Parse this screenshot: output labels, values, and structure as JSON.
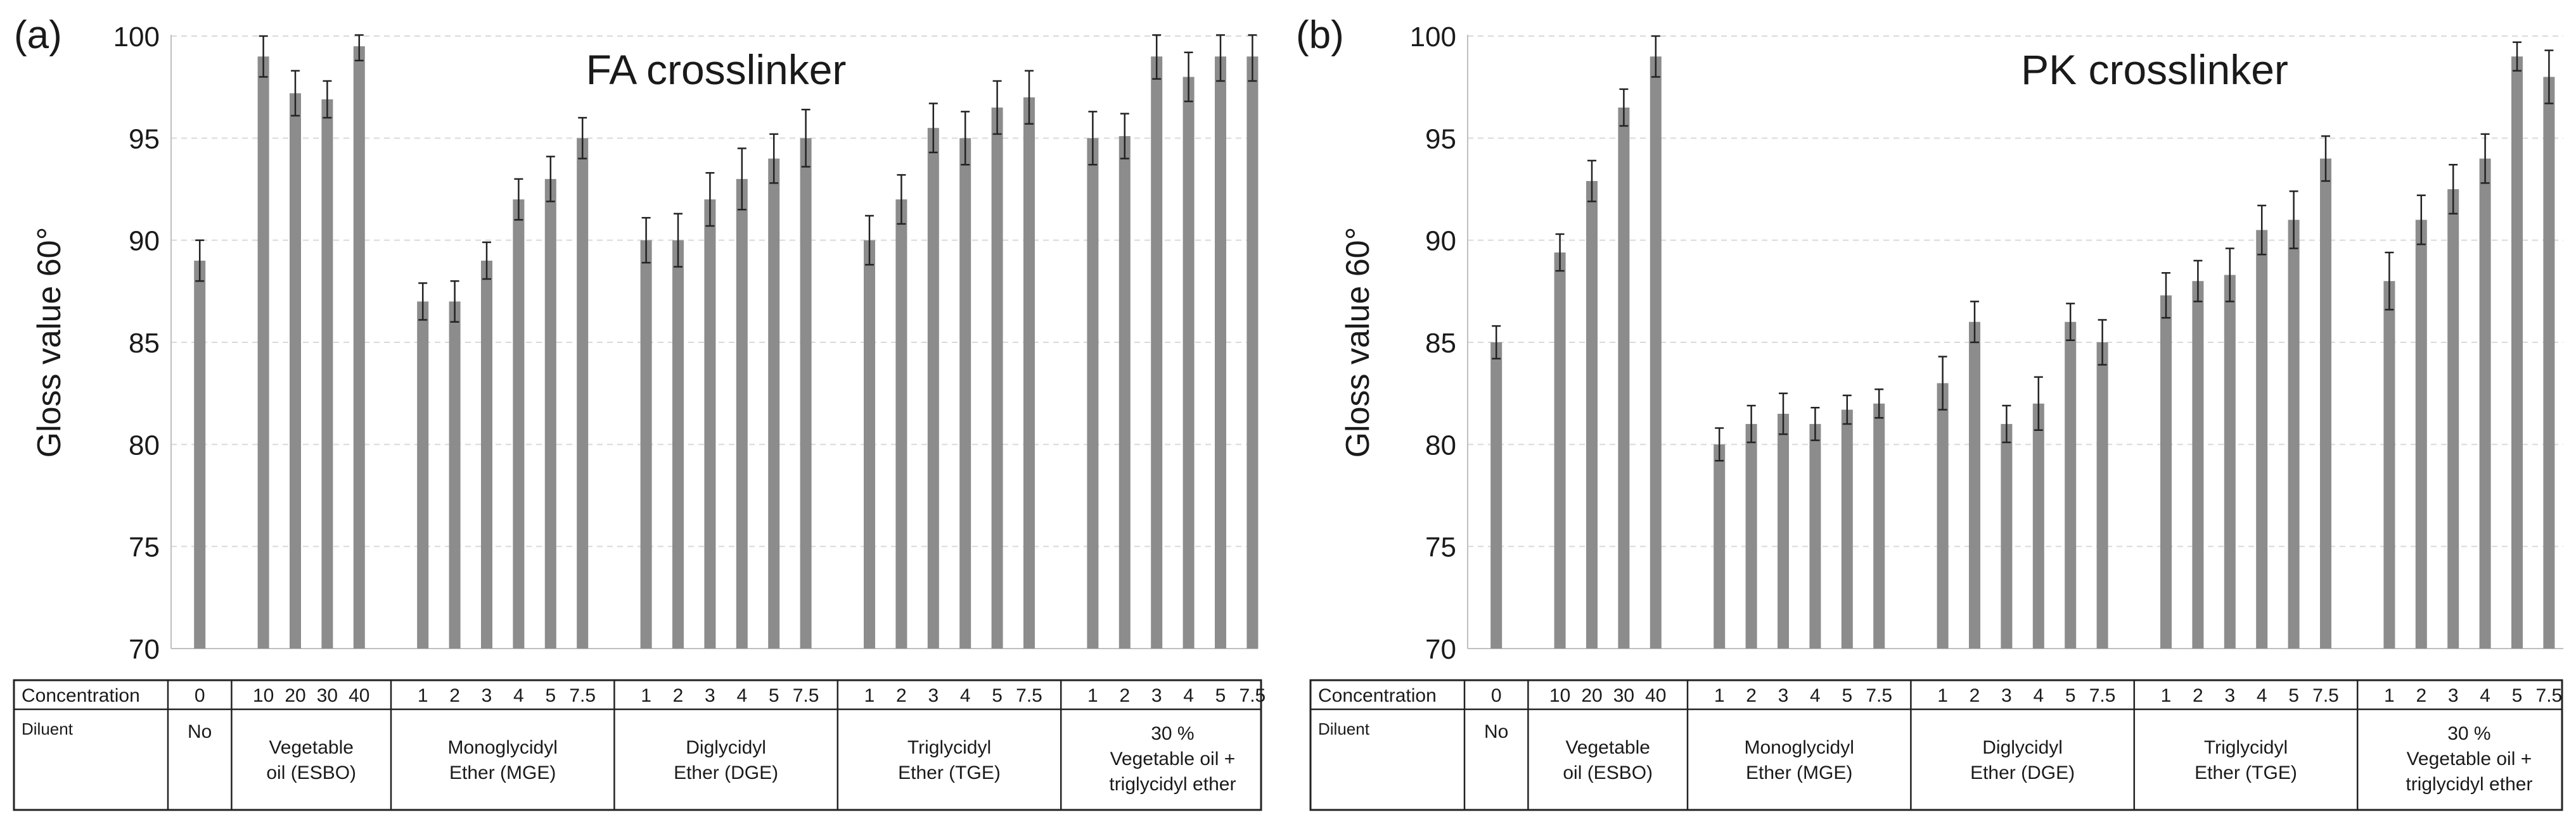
{
  "chart_data": [
    {
      "type": "bar",
      "panel_label": "(a)",
      "title": "FA crosslinker",
      "ylabel": "Gloss value 60°",
      "ylim": [
        70,
        100
      ],
      "yticks": [
        70,
        75,
        80,
        85,
        90,
        95,
        100
      ],
      "grid": true,
      "bar_color": "#8c8c8c",
      "groups": [
        {
          "diluent": [
            "No"
          ],
          "concentrations": [
            "0"
          ],
          "values": [
            89
          ],
          "errors": [
            1.0
          ]
        },
        {
          "diluent": [
            "Vegetable",
            "oil (ESBO)"
          ],
          "concentrations": [
            "10",
            "20",
            "30",
            "40"
          ],
          "values": [
            99,
            97.2,
            96.9,
            99.5
          ],
          "errors": [
            1.0,
            1.1,
            0.9,
            0.7
          ]
        },
        {
          "diluent": [
            "Monoglycidyl",
            "Ether (MGE)"
          ],
          "concentrations": [
            "1",
            "2",
            "3",
            "4",
            "5",
            "7.5"
          ],
          "values": [
            87,
            87,
            89,
            92,
            93,
            95
          ],
          "errors": [
            0.9,
            1.0,
            0.9,
            1.0,
            1.1,
            1.0
          ]
        },
        {
          "diluent": [
            "Diglycidyl",
            "Ether (DGE)"
          ],
          "concentrations": [
            "1",
            "2",
            "3",
            "4",
            "5",
            "7.5"
          ],
          "values": [
            90,
            90,
            92,
            93,
            94,
            95
          ],
          "errors": [
            1.1,
            1.3,
            1.3,
            1.5,
            1.2,
            1.4
          ]
        },
        {
          "diluent": [
            "Triglycidyl",
            "Ether (TGE)"
          ],
          "concentrations": [
            "1",
            "2",
            "3",
            "4",
            "5",
            "7.5"
          ],
          "values": [
            90,
            92,
            95.5,
            95,
            96.5,
            97
          ],
          "errors": [
            1.2,
            1.2,
            1.2,
            1.3,
            1.3,
            1.3
          ]
        },
        {
          "diluent": [
            "30 %",
            "Vegetable oil +",
            "triglycidyl ether"
          ],
          "concentrations": [
            "1",
            "2",
            "3",
            "4",
            "5",
            "7.5"
          ],
          "values": [
            95,
            95.1,
            99,
            98,
            99,
            99
          ],
          "errors": [
            1.3,
            1.1,
            1.1,
            1.2,
            1.2,
            1.2
          ]
        }
      ]
    },
    {
      "type": "bar",
      "panel_label": "(b)",
      "title": "PK crosslinker",
      "ylabel": "Gloss value 60°",
      "ylim": [
        70,
        100
      ],
      "yticks": [
        70,
        75,
        80,
        85,
        90,
        95,
        100
      ],
      "grid": true,
      "bar_color": "#8c8c8c",
      "groups": [
        {
          "diluent": [
            "No"
          ],
          "concentrations": [
            "0"
          ],
          "values": [
            85
          ],
          "errors": [
            0.8
          ]
        },
        {
          "diluent": [
            "Vegetable",
            "oil (ESBO)"
          ],
          "concentrations": [
            "10",
            "20",
            "30",
            "40"
          ],
          "values": [
            89.4,
            92.9,
            96.5,
            99
          ],
          "errors": [
            0.9,
            1.0,
            0.9,
            1.0
          ]
        },
        {
          "diluent": [
            "Monoglycidyl",
            "Ether (MGE)"
          ],
          "concentrations": [
            "1",
            "2",
            "3",
            "4",
            "5",
            "7.5"
          ],
          "values": [
            80,
            81,
            81.5,
            81,
            81.7,
            82
          ],
          "errors": [
            0.8,
            0.9,
            1.0,
            0.8,
            0.7,
            0.7
          ]
        },
        {
          "diluent": [
            "Diglycidyl",
            "Ether (DGE)"
          ],
          "concentrations": [
            "1",
            "2",
            "3",
            "4",
            "5",
            "7.5"
          ],
          "values": [
            83,
            86,
            81,
            82,
            86,
            85
          ],
          "errors": [
            1.3,
            1.0,
            0.9,
            1.3,
            0.9,
            1.1
          ]
        },
        {
          "diluent": [
            "Triglycidyl",
            "Ether (TGE)"
          ],
          "concentrations": [
            "1",
            "2",
            "3",
            "4",
            "5",
            "7.5"
          ],
          "values": [
            87.3,
            88,
            88.3,
            90.5,
            91,
            94
          ],
          "errors": [
            1.1,
            1.0,
            1.3,
            1.2,
            1.4,
            1.1
          ]
        },
        {
          "diluent": [
            "30 %",
            "Vegetable oil +",
            "triglycidyl ether"
          ],
          "concentrations": [
            "1",
            "2",
            "3",
            "4",
            "5",
            "7.5"
          ],
          "values": [
            88,
            91,
            92.5,
            94,
            99,
            98
          ],
          "errors": [
            1.4,
            1.2,
            1.2,
            1.2,
            0.7,
            1.3
          ]
        }
      ]
    }
  ],
  "table": {
    "concentration_label": "Concentration",
    "diluent_label": "Diluent"
  }
}
